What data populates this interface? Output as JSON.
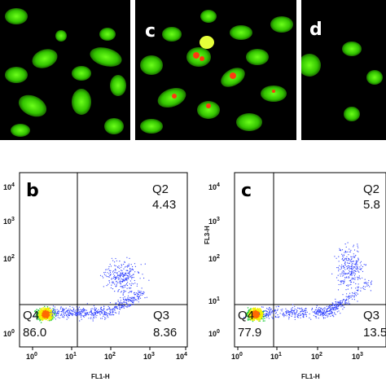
{
  "micrographs": [
    {
      "label": ""
    },
    {
      "label": "c"
    },
    {
      "label": "d"
    }
  ],
  "plots": [
    {
      "panel_letter": "b",
      "quadrants": {
        "Q2": "Q2",
        "Q2_value": "4.43",
        "Q3": "Q3",
        "Q3_value": "8.36",
        "Q4": "Q4",
        "Q4_value": "86.0"
      },
      "xlabel": "FL1-H",
      "ylabel": "",
      "x_ticks": [
        "10",
        "10",
        "10",
        "10",
        "10"
      ],
      "x_tick_exps": [
        "0",
        "1",
        "2",
        "3",
        "4"
      ],
      "y_ticks": [
        "10",
        "10",
        "10",
        "10"
      ],
      "y_tick_exps": [
        "4",
        "3",
        "2",
        "0"
      ]
    },
    {
      "panel_letter": "c",
      "quadrants": {
        "Q2": "Q2",
        "Q2_value": "5.8",
        "Q3": "Q3",
        "Q3_value": "13.5",
        "Q4": "Q4",
        "Q4_value": "77.9"
      },
      "xlabel": "FL1-H",
      "ylabel": "FL3-H",
      "x_ticks": [
        "10",
        "10",
        "10",
        "10",
        "10"
      ],
      "x_tick_exps": [
        "0",
        "1",
        "2",
        "3",
        "4"
      ],
      "y_ticks": [
        "10",
        "10",
        "10",
        "10",
        "10"
      ],
      "y_tick_exps": [
        "4",
        "3",
        "2",
        "1",
        "0"
      ]
    }
  ],
  "colors": {
    "cell_green": "#3fd400",
    "cell_red": "#ff3a10",
    "dot_blue": "#2a3cff",
    "dense_yellow": "#f2f000"
  }
}
